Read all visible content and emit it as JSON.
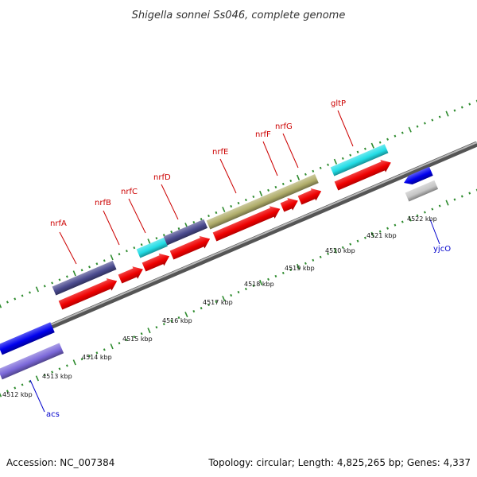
{
  "title": "Shigella sonnei Ss046, complete genome",
  "footer": {
    "accession": "Accession: NC_007384",
    "summary": "Topology: circular; Length: 4,825,265 bp; Genes: 4,337"
  },
  "gene_labels": [
    {
      "text": "nrfA",
      "color": "#cc0000"
    },
    {
      "text": "nrfB",
      "color": "#cc0000"
    },
    {
      "text": "nrfC",
      "color": "#cc0000"
    },
    {
      "text": "nrfD",
      "color": "#cc0000"
    },
    {
      "text": "nrfE",
      "color": "#cc0000"
    },
    {
      "text": "nrfF",
      "color": "#cc0000"
    },
    {
      "text": "nrfG",
      "color": "#cc0000"
    },
    {
      "text": "gltP",
      "color": "#cc0000"
    },
    {
      "text": "yjcO",
      "color": "#0000cc"
    },
    {
      "text": "acs",
      "color": "#0000cc"
    }
  ],
  "kbp_labels": [
    "4512 kbp",
    "4513 kbp",
    "4514 kbp",
    "4515 kbp",
    "4516 kbp",
    "4517 kbp",
    "4518 kbp",
    "4519 kbp",
    "4520 kbp",
    "4521 kbp",
    "4522 kbp"
  ],
  "colors": {
    "backbone": "#8c8c8c",
    "tick": "#2e8b2e",
    "cds_forward": "#ee0000",
    "navy_feature": "#4a4a8e",
    "cyan_feature": "#22dde6",
    "olive_feature": "#b0ad6a",
    "blue_feature": "#0000ee",
    "lavender_feature": "#7b68d9",
    "gray_feature": "#c6c6c6"
  }
}
